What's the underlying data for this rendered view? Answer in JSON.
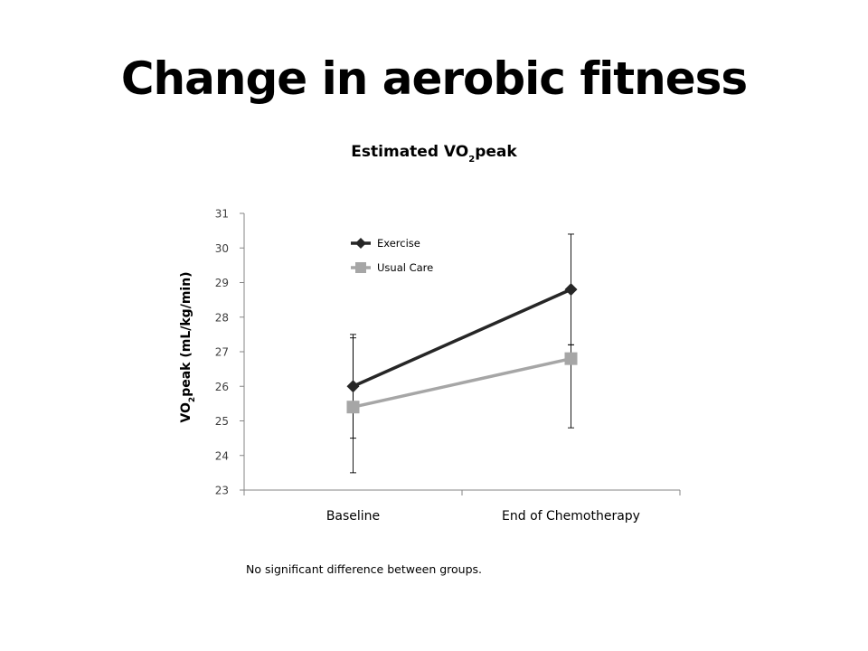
{
  "slide": {
    "title": "Change in aerobic fitness",
    "footnote": "No significant difference between groups."
  },
  "chart_data": {
    "type": "line",
    "title_main": "Estimated VO",
    "title_sub": "2",
    "title_suffix": "peak",
    "ylabel_main": "VO",
    "ylabel_sub": "2",
    "ylabel_suffix": "peak (mL/kg/min)",
    "categories": [
      "Baseline",
      "End of Chemotherapy"
    ],
    "ylim": [
      23,
      31
    ],
    "yticks": [
      23,
      24,
      25,
      26,
      27,
      28,
      29,
      30,
      31
    ],
    "grid": false,
    "legend_position": "top-left",
    "series": [
      {
        "name": "Exercise",
        "values": [
          26.0,
          28.8
        ],
        "error_low": [
          23.5,
          27.2
        ],
        "error_high": [
          27.5,
          30.4
        ],
        "color": "#262626",
        "marker": "diamond"
      },
      {
        "name": "Usual Care",
        "values": [
          25.4,
          26.8
        ],
        "error_low": [
          24.5,
          24.8
        ],
        "error_high": [
          27.4,
          27.2
        ],
        "color": "#a6a6a6",
        "marker": "square"
      }
    ]
  }
}
